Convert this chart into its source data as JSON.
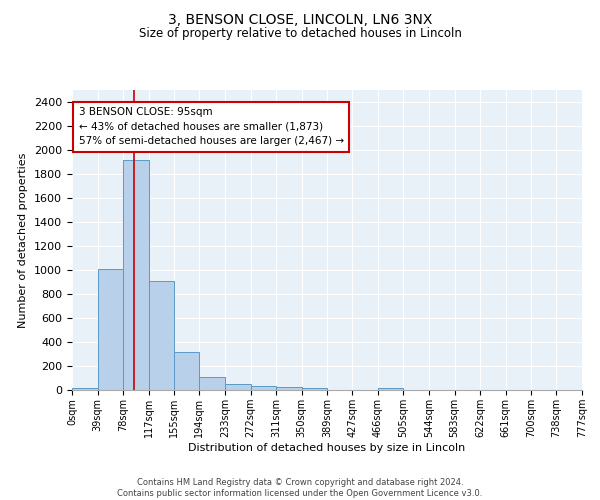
{
  "title": "3, BENSON CLOSE, LINCOLN, LN6 3NX",
  "subtitle": "Size of property relative to detached houses in Lincoln",
  "xlabel": "Distribution of detached houses by size in Lincoln",
  "ylabel": "Number of detached properties",
  "bin_edges": [
    0,
    39,
    78,
    117,
    155,
    194,
    233,
    272,
    311,
    350,
    389,
    427,
    466,
    505,
    544,
    583,
    622,
    661,
    700,
    738,
    777
  ],
  "bar_heights": [
    20,
    1010,
    1920,
    910,
    320,
    110,
    50,
    30,
    25,
    20,
    0,
    0,
    20,
    0,
    0,
    0,
    0,
    0,
    0,
    0
  ],
  "bar_color": "#b8d0ea",
  "bar_edge_color": "#5a9ac8",
  "background_color": "#e8f0f8",
  "property_line_x": 95,
  "property_line_color": "#cc0000",
  "ylim": [
    0,
    2500
  ],
  "yticks": [
    0,
    200,
    400,
    600,
    800,
    1000,
    1200,
    1400,
    1600,
    1800,
    2000,
    2200,
    2400
  ],
  "annotation_text": "3 BENSON CLOSE: 95sqm\n← 43% of detached houses are smaller (1,873)\n57% of semi-detached houses are larger (2,467) →",
  "annotation_box_color": "#cc0000",
  "footer_text": "Contains HM Land Registry data © Crown copyright and database right 2024.\nContains public sector information licensed under the Open Government Licence v3.0.",
  "tick_labels": [
    "0sqm",
    "39sqm",
    "78sqm",
    "117sqm",
    "155sqm",
    "194sqm",
    "233sqm",
    "272sqm",
    "311sqm",
    "350sqm",
    "389sqm",
    "427sqm",
    "466sqm",
    "505sqm",
    "544sqm",
    "583sqm",
    "622sqm",
    "661sqm",
    "700sqm",
    "738sqm",
    "777sqm"
  ]
}
